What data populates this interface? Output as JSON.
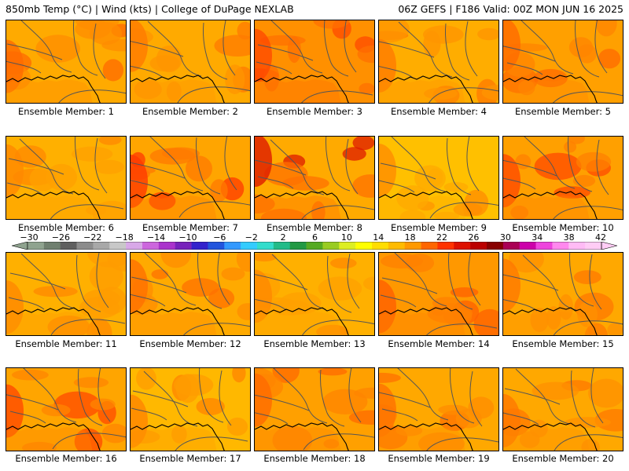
{
  "header": {
    "title": "850mb Temp (°C) | Wind (kts) | College of DuPage NEXLAB",
    "run_info": "06Z GEFS | F186 Valid: 00Z MON JUN 16 2025"
  },
  "colorbar": {
    "labels": [
      "−30",
      "−26",
      "−22",
      "−18",
      "−14",
      "−10",
      "−6",
      "−2",
      "2",
      "6",
      "10",
      "14",
      "18",
      "22",
      "26",
      "30",
      "34",
      "38",
      "42"
    ],
    "colors": [
      "#8fa38f",
      "#6f7f6f",
      "#5f5f5f",
      "#8c8c8c",
      "#a8a8a8",
      "#c8c8c8",
      "#d8a8e8",
      "#cc66dd",
      "#aa33cc",
      "#7722bb",
      "#3322cc",
      "#2255dd",
      "#3399ff",
      "#33ccff",
      "#33ddcc",
      "#22bb88",
      "#229944",
      "#55aa22",
      "#99cc22",
      "#ddee22",
      "#ffff00",
      "#ffdd00",
      "#ffbb00",
      "#ff9900",
      "#ff6600",
      "#ff3300",
      "#dd1100",
      "#bb0000",
      "#880000",
      "#aa0055",
      "#cc00aa",
      "#ee44dd",
      "#ff88ee",
      "#ffbbf5",
      "#ffccf5"
    ]
  },
  "panels": [
    {
      "label": "Ensemble Member: 1",
      "base": "#ffaa00",
      "warm": "#ff8c00",
      "hot": "#ff6a00"
    },
    {
      "label": "Ensemble Member: 2",
      "base": "#ffaa00",
      "warm": "#ff9400",
      "hot": "#ff7a00"
    },
    {
      "label": "Ensemble Member: 3",
      "base": "#ff9000",
      "warm": "#ff7000",
      "hot": "#ff4a00"
    },
    {
      "label": "Ensemble Member: 4",
      "base": "#ffad00",
      "warm": "#ff9400",
      "hot": "#ff7a00"
    },
    {
      "label": "Ensemble Member: 5",
      "base": "#ffa000",
      "warm": "#ff8400",
      "hot": "#ff6a00"
    },
    {
      "label": "Ensemble Member: 6",
      "base": "#ffb000",
      "warm": "#ffa000",
      "hot": "#ff8800"
    },
    {
      "label": "Ensemble Member: 7",
      "base": "#ffa500",
      "warm": "#ff7a00",
      "hot": "#ff3a00"
    },
    {
      "label": "Ensemble Member: 8",
      "base": "#ffaa00",
      "warm": "#ff7000",
      "hot": "#dd1a00"
    },
    {
      "label": "Ensemble Member: 9",
      "base": "#ffc000",
      "warm": "#ffaa00",
      "hot": "#ff8c00"
    },
    {
      "label": "Ensemble Member: 10",
      "base": "#ffa000",
      "warm": "#ff8000",
      "hot": "#ff4a00"
    },
    {
      "label": "Ensemble Member: 11",
      "base": "#ffb000",
      "warm": "#ff9c00",
      "hot": "#ff8800"
    },
    {
      "label": "Ensemble Member: 12",
      "base": "#ffaa00",
      "warm": "#ff8c00",
      "hot": "#ff7000"
    },
    {
      "label": "Ensemble Member: 13",
      "base": "#ffb000",
      "warm": "#ffa000",
      "hot": "#ff8800"
    },
    {
      "label": "Ensemble Member: 14",
      "base": "#ff9800",
      "warm": "#ff8000",
      "hot": "#ff6000"
    },
    {
      "label": "Ensemble Member: 15",
      "base": "#ffa800",
      "warm": "#ff9000",
      "hot": "#ff7800"
    },
    {
      "label": "Ensemble Member: 16",
      "base": "#ffa500",
      "warm": "#ff8600",
      "hot": "#ff4a00"
    },
    {
      "label": "Ensemble Member: 17",
      "base": "#ffb800",
      "warm": "#ff9c00",
      "hot": "#ff8400"
    },
    {
      "label": "Ensemble Member: 18",
      "base": "#ffa000",
      "warm": "#ff8400",
      "hot": "#ff6a00"
    },
    {
      "label": "Ensemble Member: 19",
      "base": "#ffa800",
      "warm": "#ff8c00",
      "hot": "#ff7000"
    },
    {
      "label": "Ensemble Member: 20",
      "base": "#ffa800",
      "warm": "#ff9000",
      "hot": "#ff7800"
    }
  ]
}
